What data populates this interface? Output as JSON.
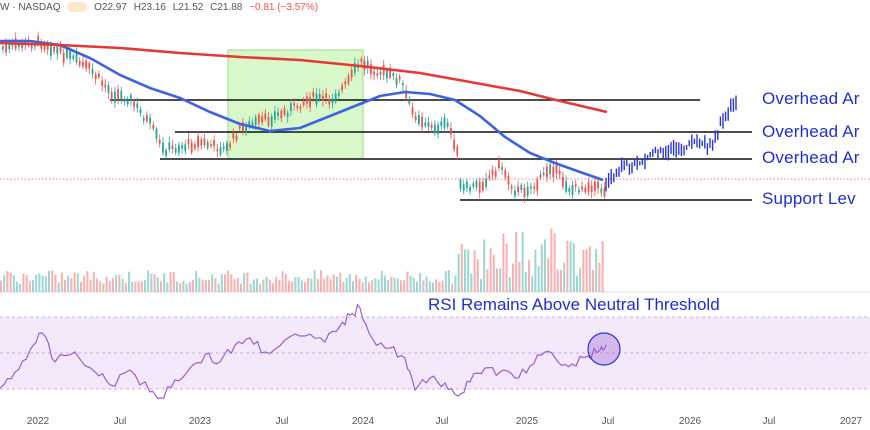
{
  "header": {
    "ticker_exchange": "W · NASDAQ",
    "open": "O22.97",
    "high": "H23.16",
    "low": "L21.52",
    "close": "C21.88",
    "change": "−0.81 (−3.57%)"
  },
  "colors": {
    "up": "#26a69a",
    "down": "#ef5350",
    "projection": "#2a35d8",
    "ma_fast": "#3d63dd",
    "ma_slow": "#e53935",
    "highlight_fill": "#ccf5b8",
    "annotation_text": "#1f2fd6",
    "rsi_band": "#f3e9fb",
    "rsi_line": "#9c5fce"
  },
  "chart_data": {
    "type": "line",
    "x_ticks": [
      "2022",
      "Jul",
      "2023",
      "Jul",
      "2024",
      "Jul",
      "2025",
      "Jul",
      "2026",
      "Jul",
      "2027"
    ],
    "annotations": [
      {
        "text": "Overhead Ar",
        "kind": "horizontal-level"
      },
      {
        "text": "Overhead Ar",
        "kind": "horizontal-level"
      },
      {
        "text": "Overhead Ar",
        "kind": "horizontal-level"
      },
      {
        "text": "Support Lev",
        "kind": "horizontal-level"
      }
    ],
    "rsi_title": "RSI Remains Above Neutral Threshold"
  }
}
